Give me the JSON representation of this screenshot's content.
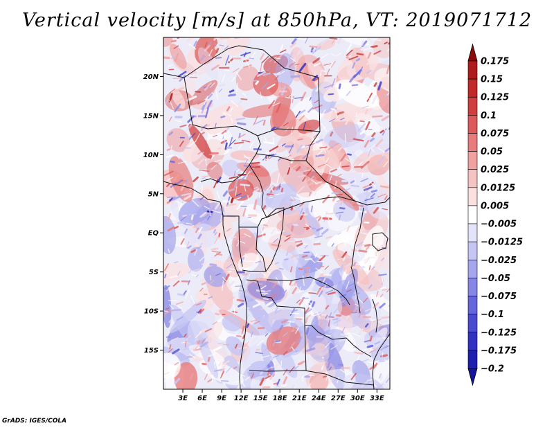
{
  "title": "Vertical velocity [m/s] at 850hPa, VT: 2019071712",
  "map": {
    "lon_range": [
      0,
      35
    ],
    "lat_range": [
      -20,
      25
    ],
    "lat_ticks": [
      {
        "value": 20,
        "label": "20N"
      },
      {
        "value": 15,
        "label": "15N"
      },
      {
        "value": 10,
        "label": "10N"
      },
      {
        "value": 5,
        "label": "5N"
      },
      {
        "value": 0,
        "label": "EQ"
      },
      {
        "value": -5,
        "label": "5S"
      },
      {
        "value": -10,
        "label": "10S"
      },
      {
        "value": -15,
        "label": "15S"
      }
    ],
    "lon_ticks": [
      {
        "value": 3,
        "label": "3E"
      },
      {
        "value": 6,
        "label": "6E"
      },
      {
        "value": 9,
        "label": "9E"
      },
      {
        "value": 12,
        "label": "12E"
      },
      {
        "value": 15,
        "label": "15E"
      },
      {
        "value": 18,
        "label": "18E"
      },
      {
        "value": 21,
        "label": "21E"
      },
      {
        "value": 24,
        "label": "24E"
      },
      {
        "value": 27,
        "label": "27E"
      },
      {
        "value": 30,
        "label": "30E"
      },
      {
        "value": 33,
        "label": "33E"
      }
    ]
  },
  "colorbar": {
    "levels": [
      {
        "label": "0.175",
        "color": "#a01212"
      },
      {
        "label": "0.15",
        "color": "#b01c1c"
      },
      {
        "label": "0.125",
        "color": "#c22a2a"
      },
      {
        "label": "0.1",
        "color": "#d13e3e"
      },
      {
        "label": "0.075",
        "color": "#dd5a5a"
      },
      {
        "label": "0.05",
        "color": "#e77c7c"
      },
      {
        "label": "0.025",
        "color": "#f0a1a1"
      },
      {
        "label": "0.0125",
        "color": "#f6c3c3"
      },
      {
        "label": "0.005",
        "color": "#fbe0e0"
      },
      {
        "label": "−0.005",
        "color": "#ffffff"
      },
      {
        "label": "−0.0125",
        "color": "#e3e3fa"
      },
      {
        "label": "−0.025",
        "color": "#c6c6f4"
      },
      {
        "label": "−0.05",
        "color": "#a6a6ee"
      },
      {
        "label": "−0.075",
        "color": "#8686e6"
      },
      {
        "label": "−0.1",
        "color": "#6666dc"
      },
      {
        "label": "−0.125",
        "color": "#4a4ad0"
      },
      {
        "label": "−0.175",
        "color": "#3232c2"
      },
      {
        "label": "−0.2",
        "color": "#1e1eb0"
      }
    ],
    "top_arrow_color": "#8e0c0c",
    "bottom_arrow_color": "#14149c"
  },
  "footer": "GrADS: IGES/COLA"
}
